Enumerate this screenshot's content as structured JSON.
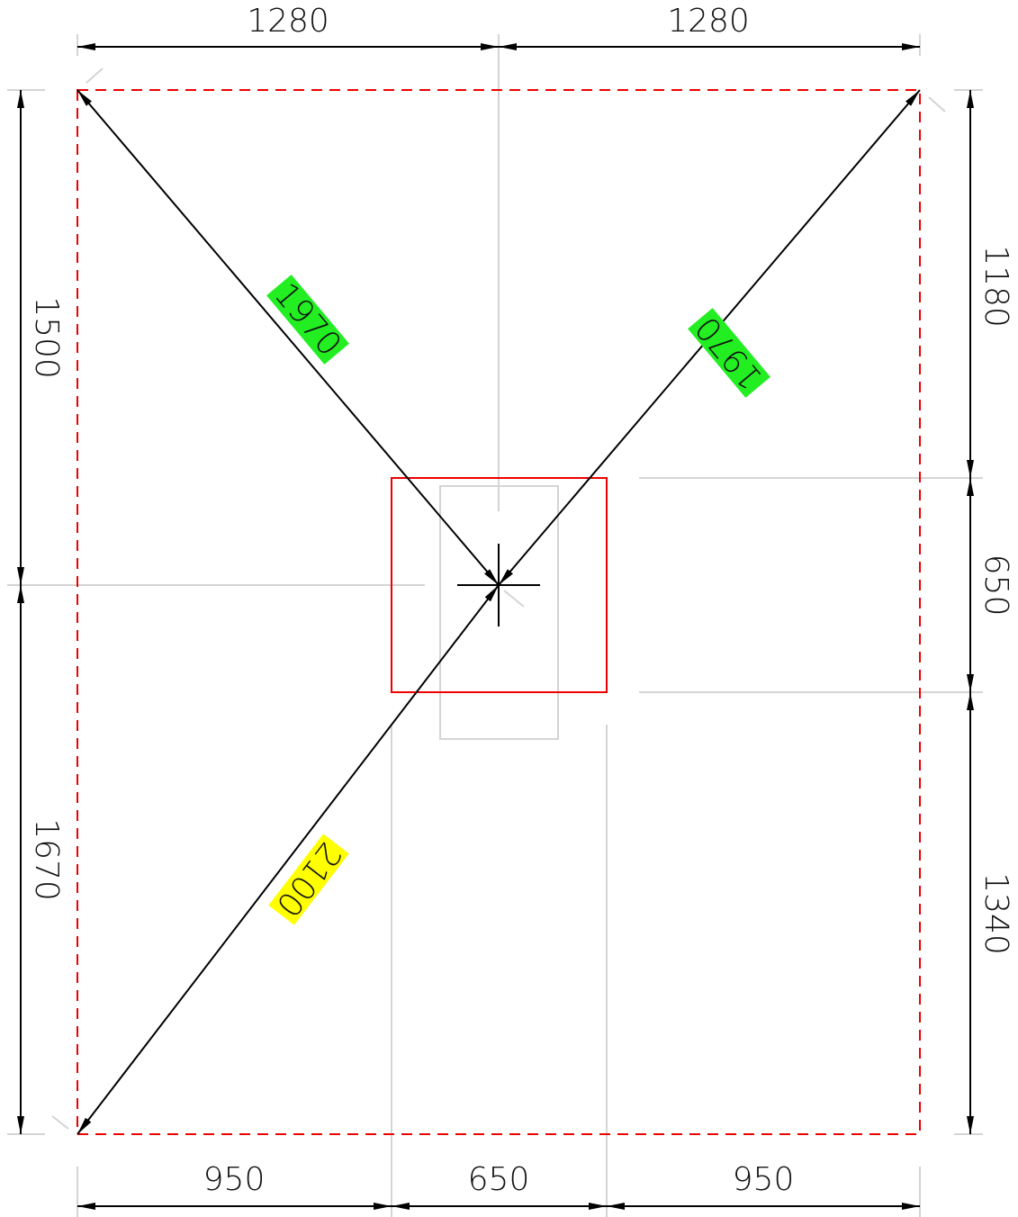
{
  "top": [
    "1280",
    "1280"
  ],
  "left": [
    "1500",
    "1670"
  ],
  "right": [
    "1180",
    "650",
    "1340"
  ],
  "bottom": [
    "950",
    "650",
    "950"
  ],
  "diagonals": [
    "1970",
    "1970",
    "2100"
  ]
}
